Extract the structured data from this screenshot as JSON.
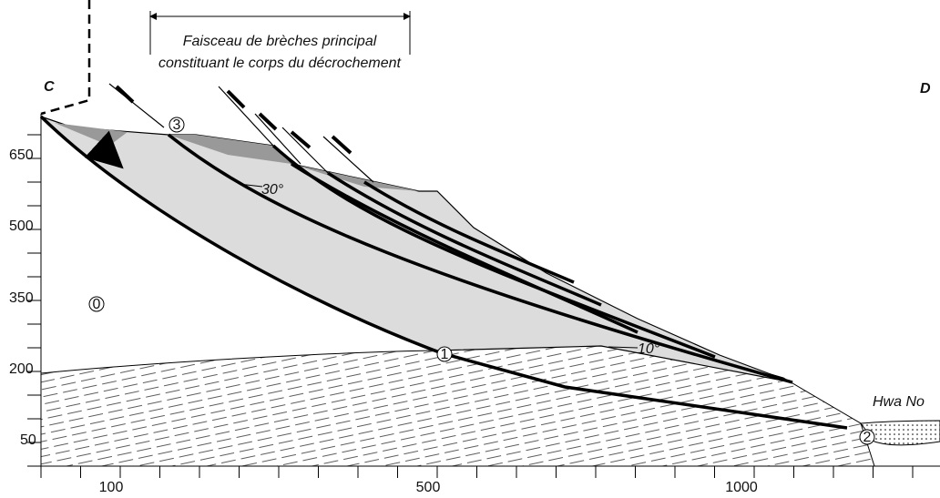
{
  "header": {
    "annotation": [
      "Faisceau de brèches principal",
      "constituant le corps du décrochement"
    ]
  },
  "labels": {
    "left": "C",
    "right": "D",
    "dip_upper": "30°",
    "dip_lower": "10°",
    "place": "Hwa No"
  },
  "markers": [
    "0",
    "1",
    "2",
    "3"
  ],
  "y_axis": {
    "ticks": [
      650,
      500,
      350,
      200,
      50
    ]
  },
  "x_axis": {
    "ticks": [
      100,
      500,
      1000
    ]
  }
}
